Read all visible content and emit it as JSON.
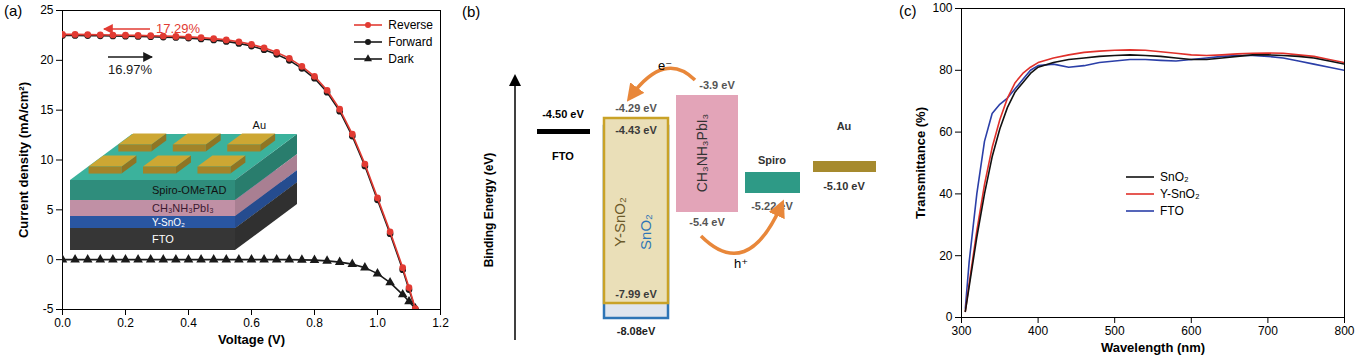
{
  "chart_data": [
    {
      "type": "line",
      "panel_label": "(a)",
      "x_label": "Voltage (V)",
      "y_label": "Current density (mA/cm²)",
      "xlim": [
        0,
        1.2
      ],
      "xticks": [
        {
          "value": 0,
          "label": "0.0"
        },
        0.2,
        0.4,
        0.6,
        0.8,
        {
          "value": 1,
          "label": "1.0"
        },
        1.2
      ],
      "ylim": [
        -5,
        25
      ],
      "yticks": [
        -5,
        0,
        5,
        10,
        15,
        20,
        25
      ],
      "grid": false,
      "legend": "upper right",
      "x": [
        0,
        0.04,
        0.08,
        0.12,
        0.16,
        0.2,
        0.24,
        0.28,
        0.32,
        0.36,
        0.4,
        0.44,
        0.48,
        0.52,
        0.56,
        0.6,
        0.64,
        0.68,
        0.72,
        0.76,
        0.8,
        0.84,
        0.88,
        0.92,
        0.96,
        1.0,
        1.04,
        1.08,
        1.1,
        1.12
      ],
      "series": [
        {
          "name": "Reverse",
          "color": "#e23b33",
          "marker": "circle",
          "line_style": "solid",
          "values": [
            22.6,
            22.6,
            22.58,
            22.56,
            22.54,
            22.52,
            22.5,
            22.47,
            22.44,
            22.4,
            22.35,
            22.28,
            22.18,
            22.05,
            21.86,
            21.6,
            21.25,
            20.8,
            20.2,
            19.4,
            18.4,
            17,
            15.1,
            12.6,
            9.6,
            6.2,
            2.8,
            -0.8,
            -2.8,
            -4.9
          ]
        },
        {
          "name": "Forward",
          "color": "#1a1a1a",
          "marker": "circle",
          "line_style": "solid",
          "values": [
            22.5,
            22.5,
            22.48,
            22.46,
            22.44,
            22.42,
            22.4,
            22.37,
            22.33,
            22.29,
            22.23,
            22.15,
            22.04,
            21.9,
            21.7,
            21.43,
            21.07,
            20.6,
            20,
            19.2,
            18.2,
            16.8,
            14.9,
            12.4,
            9.4,
            6,
            2.6,
            -1,
            -3,
            -4.95
          ]
        },
        {
          "name": "Dark",
          "color": "#1a1a1a",
          "marker": "triangle",
          "line_style": "solid",
          "values": [
            0,
            0,
            0,
            0,
            0,
            0,
            0,
            0,
            0,
            0,
            0,
            0,
            0,
            0,
            0,
            0,
            0,
            0,
            0,
            -0.02,
            -0.05,
            -0.12,
            -0.25,
            -0.45,
            -0.8,
            -1.4,
            -2.3,
            -3.5,
            -4.2,
            -4.9
          ]
        }
      ],
      "annotations": [
        {
          "text": "17.29%",
          "color": "#e23b33"
        },
        {
          "text": "16.97%",
          "color": "#1a1a1a"
        }
      ],
      "inset": {
        "layers": [
          "Au",
          "Spiro-OMeTAD",
          "CH₃NH₃PbI₃",
          "Y-SnO₂",
          "FTO"
        ]
      }
    },
    {
      "type": "line",
      "panel_label": "(c)",
      "x_label": "Wavelength (nm)",
      "y_label": "Transmittance (%)",
      "xlim": [
        300,
        800
      ],
      "xticks": [
        300,
        400,
        500,
        600,
        700,
        800
      ],
      "ylim": [
        0,
        100
      ],
      "yticks": [
        0,
        20,
        40,
        60,
        80,
        100
      ],
      "grid": false,
      "legend": "center right",
      "x": [
        305,
        310,
        320,
        330,
        340,
        350,
        360,
        370,
        380,
        390,
        400,
        420,
        440,
        460,
        480,
        500,
        520,
        540,
        560,
        580,
        600,
        620,
        640,
        660,
        680,
        700,
        720,
        740,
        760,
        780,
        800
      ],
      "series": [
        {
          "name": "SnO₂",
          "color": "#111111",
          "line_style": "solid",
          "values": [
            2,
            10,
            26,
            40,
            52,
            61,
            68,
            73,
            76,
            79,
            81,
            82.5,
            83.5,
            84,
            84.5,
            84.8,
            85,
            84.8,
            84.5,
            84,
            83.5,
            83.5,
            84,
            84.5,
            85,
            85,
            84.8,
            84.5,
            84,
            83,
            82
          ]
        },
        {
          "name": "Y-SnO₂",
          "color": "#e0302a",
          "line_style": "solid",
          "values": [
            2,
            11,
            28,
            43,
            55,
            64,
            71,
            76,
            79,
            81,
            82.5,
            84,
            85,
            85.8,
            86.2,
            86.5,
            86.6,
            86.5,
            86,
            85.5,
            85,
            84.8,
            85,
            85.3,
            85.5,
            85.6,
            85.5,
            85,
            84.5,
            83.5,
            82.5
          ]
        },
        {
          "name": "FTO",
          "color": "#2b3fa8",
          "line_style": "solid",
          "values": [
            3,
            18,
            40,
            57,
            66,
            69,
            71,
            74,
            77,
            80,
            81.5,
            82,
            81,
            81.5,
            82.5,
            83,
            83.5,
            83.5,
            83.2,
            83,
            83.5,
            84,
            84.5,
            84.8,
            84.8,
            84.5,
            84,
            83,
            82,
            81,
            80
          ]
        }
      ]
    }
  ],
  "diagram": {
    "panel_label": "(b)",
    "y_axis_label": "Binding Energy (eV)",
    "electron_label": "e⁻",
    "hole_label": "h⁺",
    "fto": {
      "name": "FTO",
      "level": "-4.50 eV"
    },
    "etl": {
      "names": [
        "Y-SnO₂",
        "SnO₂"
      ],
      "cb": [
        "-4.29 eV",
        "-4.43 eV"
      ],
      "vb": [
        "-7.99 eV",
        "-8.08eV"
      ]
    },
    "perovskite": {
      "name": "CH₃NH₃PbI₃",
      "cb": "-3.9 eV",
      "vb": "-5.4 eV"
    },
    "spiro": {
      "name": "Spiro",
      "level": "-5.22 eV"
    },
    "au": {
      "name": "Au",
      "level": "-5.10 eV"
    }
  }
}
